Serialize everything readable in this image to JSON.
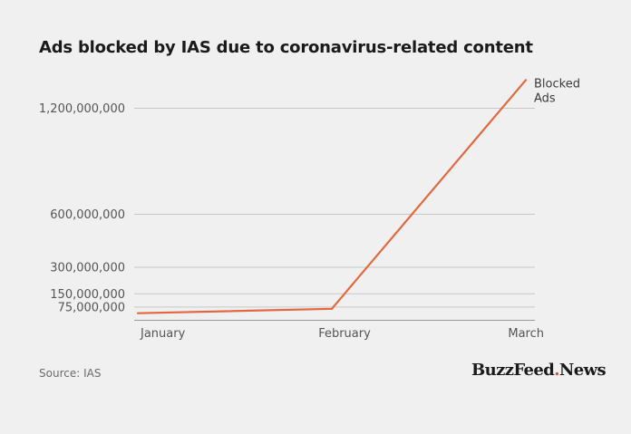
{
  "title": "Ads blocked by IAS due to coronavirus-related content",
  "source": "Source: IAS",
  "logo": {
    "text_a": "BuzzFeed",
    "text_b": "News",
    "accent": "#e4452b"
  },
  "colors": {
    "line": "#e4683f",
    "grid": "#c8c8c8",
    "background": "#f0f0f0"
  },
  "chart_data": {
    "type": "line",
    "title": "Ads blocked by IAS due to coronavirus-related content",
    "categories": [
      "January",
      "February",
      "March"
    ],
    "series": [
      {
        "name": "Blocked Ads",
        "name_lines": [
          "Blocked",
          "Ads"
        ],
        "values": [
          40000000,
          65000000,
          1360000000
        ]
      }
    ],
    "yticks": [
      75000000,
      150000000,
      300000000,
      600000000,
      1200000000
    ],
    "ytick_labels": [
      "75,000,000",
      "150,000,000",
      "300,000,000",
      "600,000,000",
      "1,200,000,000"
    ],
    "ylim": [
      0,
      1400000000
    ],
    "grid": true,
    "xlabel": "",
    "ylabel": ""
  }
}
